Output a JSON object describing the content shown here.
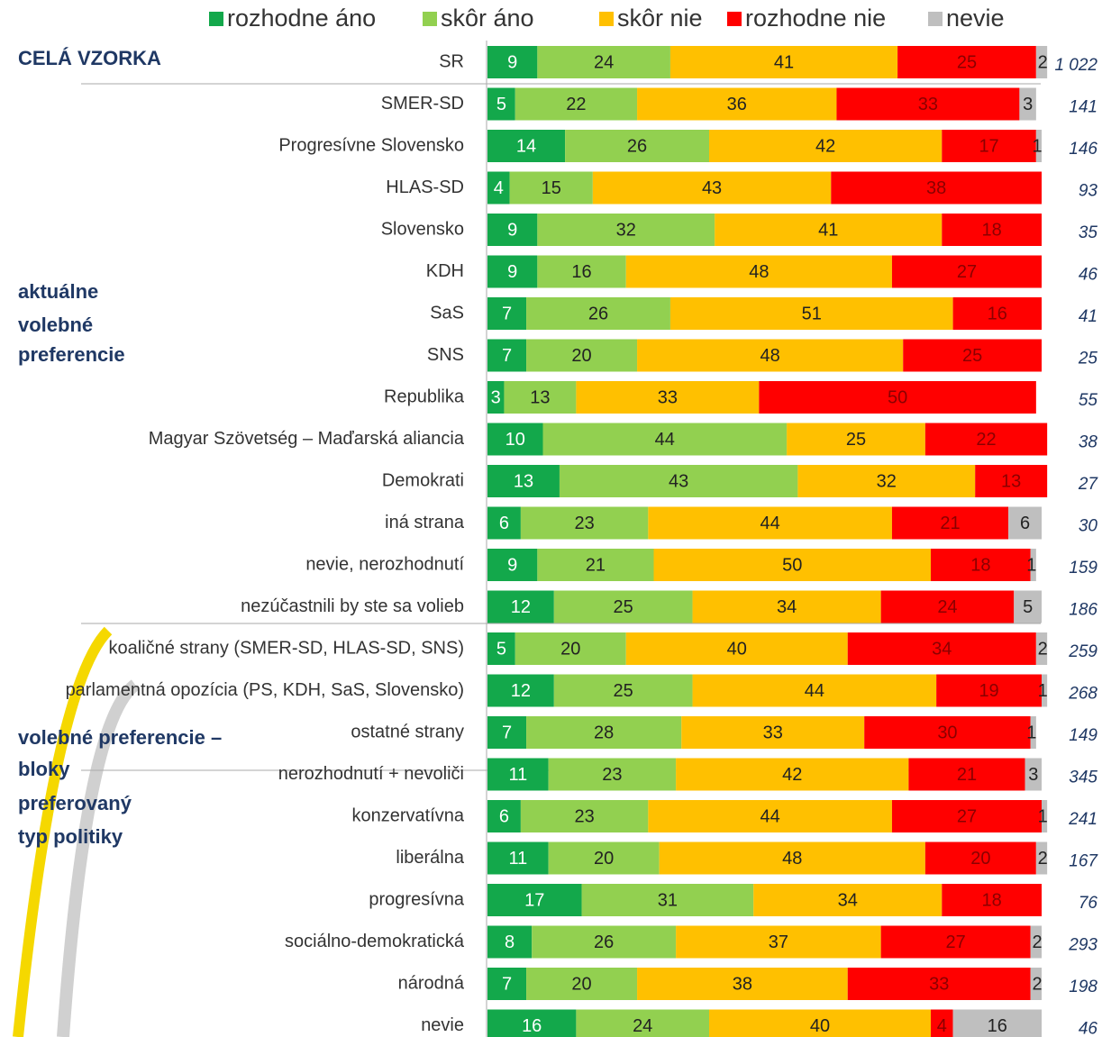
{
  "chart_data": {
    "type": "stacked-bar",
    "categories": [
      "SR",
      "SMER-SD",
      "Progresívne Slovensko",
      "HLAS-SD",
      "Slovensko",
      "KDH",
      "SaS",
      "SNS",
      "Republika",
      "Magyar Szövetség – Maďarská aliancia",
      "Demokrati",
      "iná strana",
      "nevie, nerozhodnutí",
      "nezúčastnili by ste sa volieb",
      "koaličné strany (SMER-SD, HLAS-SD, SNS)",
      "parlamentná opozícia (PS, KDH, SaS, Slovensko)",
      "ostatné strany",
      "nerozhodnutí + nevoliči",
      "konzervatívna",
      "liberálna",
      "progresívna",
      "sociálno-demokratická",
      "národná",
      "nevie"
    ],
    "series": [
      {
        "name": "rozhodne áno",
        "color": "#13a84b",
        "values": [
          9,
          5,
          14,
          4,
          9,
          9,
          7,
          7,
          3,
          10,
          13,
          6,
          9,
          12,
          5,
          12,
          7,
          11,
          6,
          11,
          17,
          8,
          7,
          16
        ]
      },
      {
        "name": "skôr áno",
        "color": "#92d050",
        "values": [
          24,
          22,
          26,
          15,
          32,
          16,
          26,
          20,
          13,
          44,
          43,
          23,
          21,
          25,
          20,
          25,
          28,
          23,
          23,
          20,
          31,
          26,
          20,
          24
        ]
      },
      {
        "name": "skôr nie",
        "color": "#ffc000",
        "values": [
          41,
          36,
          42,
          43,
          41,
          48,
          51,
          48,
          33,
          25,
          32,
          44,
          50,
          34,
          40,
          44,
          33,
          42,
          44,
          48,
          34,
          37,
          38,
          40
        ]
      },
      {
        "name": "rozhodne nie",
        "color": "#ff0000",
        "values": [
          25,
          33,
          17,
          38,
          18,
          27,
          16,
          25,
          50,
          22,
          13,
          21,
          18,
          24,
          34,
          19,
          30,
          21,
          27,
          20,
          18,
          27,
          33,
          4
        ]
      },
      {
        "name": "nevie",
        "color": "#bfbfbf",
        "values": [
          2,
          3,
          1,
          null,
          null,
          null,
          null,
          null,
          null,
          null,
          null,
          6,
          1,
          5,
          2,
          1,
          1,
          3,
          1,
          2,
          null,
          2,
          2,
          16
        ]
      }
    ],
    "sample_sizes": [
      "1 022",
      "141",
      "146",
      "93",
      "35",
      "46",
      "41",
      "25",
      "55",
      "38",
      "27",
      "30",
      "159",
      "186",
      "259",
      "268",
      "149",
      "345",
      "241",
      "167",
      "76",
      "293",
      "198",
      "46"
    ],
    "group_labels": [
      [
        "CELÁ VZORKA"
      ],
      [
        "aktuálne",
        "volebné",
        "preferencie"
      ],
      [
        "volebné preferencie –",
        "bloky"
      ],
      [
        "preferovaný",
        "typ politiky"
      ]
    ]
  }
}
